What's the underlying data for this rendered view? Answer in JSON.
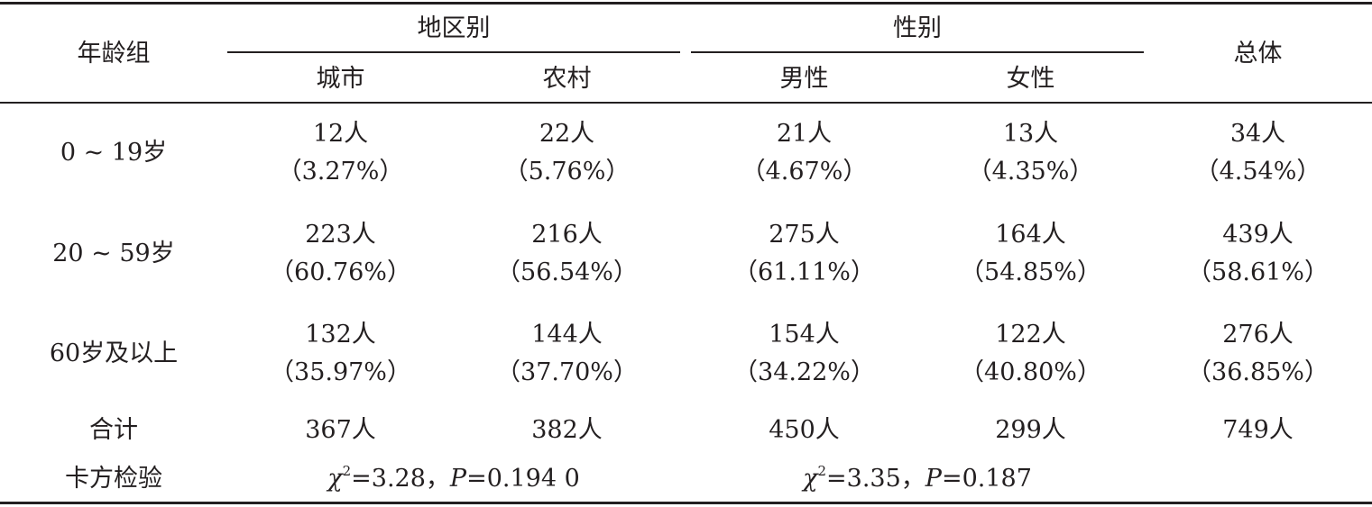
{
  "header": {
    "age_group": "年龄组",
    "region": "地区别",
    "gender": "性别",
    "total": "总体",
    "city": "城市",
    "rural": "农村",
    "male": "男性",
    "female": "女性"
  },
  "rows": [
    {
      "label": "0 ~ 19岁",
      "city": {
        "n": "12人",
        "pct": "（3.27%）"
      },
      "rural": {
        "n": "22人",
        "pct": "（5.76%）"
      },
      "male": {
        "n": "21人",
        "pct": "（4.67%）"
      },
      "female": {
        "n": "13人",
        "pct": "（4.35%）"
      },
      "total": {
        "n": "34人",
        "pct": "（4.54%）"
      }
    },
    {
      "label": "20 ~ 59岁",
      "city": {
        "n": "223人",
        "pct": "（60.76%）"
      },
      "rural": {
        "n": "216人",
        "pct": "（56.54%）"
      },
      "male": {
        "n": "275人",
        "pct": "（61.11%）"
      },
      "female": {
        "n": "164人",
        "pct": "（54.85%）"
      },
      "total": {
        "n": "439人",
        "pct": "（58.61%）"
      }
    },
    {
      "label": "60岁及以上",
      "city": {
        "n": "132人",
        "pct": "（35.97%）"
      },
      "rural": {
        "n": "144人",
        "pct": "（37.70%）"
      },
      "male": {
        "n": "154人",
        "pct": "（34.22%）"
      },
      "female": {
        "n": "122人",
        "pct": "（40.80%）"
      },
      "total": {
        "n": "276人",
        "pct": "（36.85%）"
      }
    }
  ],
  "total_row": {
    "label": "合计",
    "city": "367人",
    "rural": "382人",
    "male": "450人",
    "female": "299人",
    "total": "749人"
  },
  "chi_row": {
    "label": "卡方检验",
    "region": {
      "chi": "χ",
      "exp": "2",
      "chi_val": "=3.28，",
      "p": "P",
      "p_val": "=0.194 0"
    },
    "gender": {
      "chi": "χ",
      "exp": "2",
      "chi_val": "=3.35，",
      "p": "P",
      "p_val": "=0.187"
    }
  }
}
